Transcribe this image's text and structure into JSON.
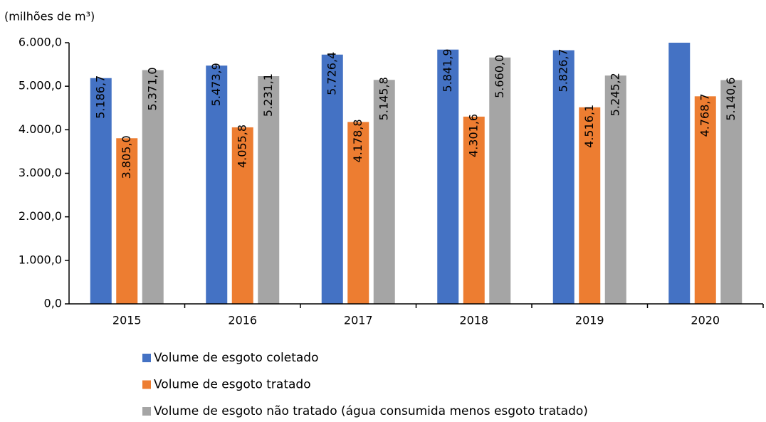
{
  "chart_data": {
    "type": "bar",
    "y_label": "(milhões de m³)",
    "categories": [
      "2015",
      "2016",
      "2017",
      "2018",
      "2019",
      "2020"
    ],
    "series": [
      {
        "name": "Volume de esgoto coletado",
        "color": "#4472c4",
        "values": [
          5186.7,
          5473.9,
          5726.4,
          5841.9,
          5826.7,
          6000
        ],
        "value_labels": [
          "5.186,7",
          "5.473,9",
          "5.726,4",
          "5.841,9",
          "5.826,7",
          null
        ]
      },
      {
        "name": "Volume de esgoto tratado",
        "color": "#ed7d31",
        "values": [
          3805.0,
          4055.8,
          4178.8,
          4301.6,
          4516.1,
          4768.7
        ],
        "value_labels": [
          "3.805,0",
          "4.055,8",
          "4.178,8",
          "4.301,6",
          "4.516,1",
          "4.768,7"
        ]
      },
      {
        "name": "Volume de esgoto não tratado (água consumida menos esgoto tratado)",
        "color": "#a5a5a5",
        "values": [
          5371.0,
          5231.1,
          5145.8,
          5660.0,
          5245.2,
          5140.6
        ],
        "value_labels": [
          "5.371,0",
          "5.231,1",
          "5.145,8",
          "5.660,0",
          "5.245,2",
          "5.140,6"
        ]
      }
    ],
    "ylim": [
      0,
      6000
    ],
    "yticks": [
      {
        "value": 0,
        "label": "0,0"
      },
      {
        "value": 1000,
        "label": "1.000,0"
      },
      {
        "value": 2000,
        "label": "2.000,0"
      },
      {
        "value": 3000,
        "label": "3.000,0"
      },
      {
        "value": 4000,
        "label": "4.000,0"
      },
      {
        "value": 5000,
        "label": "5.000,0"
      },
      {
        "value": 6000,
        "label": "6.000,0"
      }
    ],
    "grid": false
  }
}
